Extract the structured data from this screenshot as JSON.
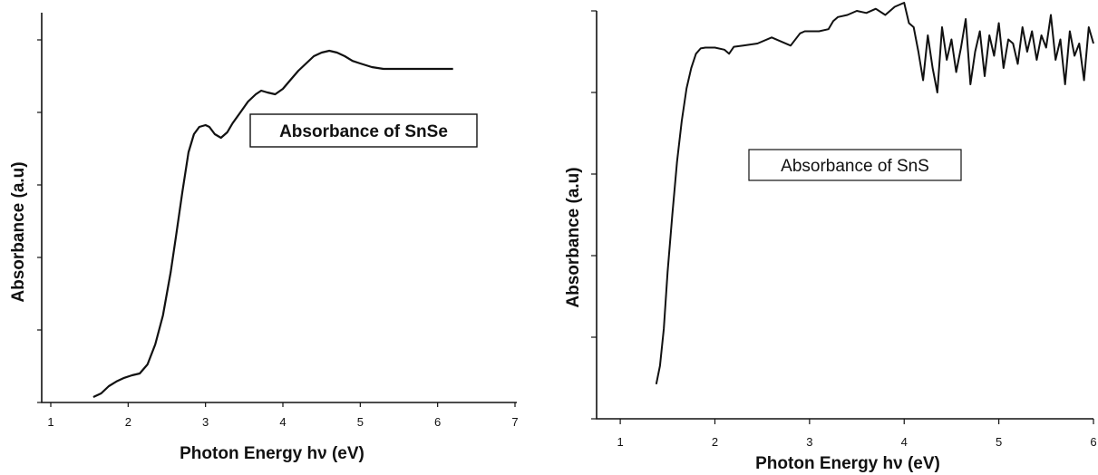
{
  "chart_data": [
    {
      "type": "line",
      "title": "",
      "xlabel": "Photon Energy hν (eV)",
      "ylabel": "Absorbance (a.u)",
      "xlim": [
        1,
        7
      ],
      "ylim": [
        0,
        10
      ],
      "x_ticks": [
        "1",
        "2",
        "3",
        "4",
        "5",
        "6",
        "7"
      ],
      "y_tick_values": [
        0,
        2,
        4,
        6,
        8,
        10
      ],
      "y_tick_labels_shown": false,
      "grid": false,
      "annotation": "Absorbance of SnSe",
      "annotation_style": "bold, boxed",
      "series": [
        {
          "x": [
            1.55,
            1.65,
            1.75,
            1.85,
            1.95,
            2.05,
            2.15,
            2.25,
            2.35,
            2.45,
            2.55,
            2.62,
            2.7,
            2.78,
            2.85,
            2.92,
            3.0,
            3.05,
            3.12,
            3.2,
            3.28,
            3.35,
            3.45,
            3.55,
            3.65,
            3.72,
            3.8,
            3.9,
            4.0,
            4.1,
            4.2,
            4.3,
            4.4,
            4.5,
            4.6,
            4.7,
            4.8,
            4.9,
            5.0,
            5.15,
            5.3,
            5.5,
            5.7,
            5.9,
            6.1,
            6.2
          ],
          "y": [
            0.15,
            0.25,
            0.45,
            0.58,
            0.68,
            0.75,
            0.8,
            1.05,
            1.6,
            2.4,
            3.6,
            4.6,
            5.8,
            6.9,
            7.4,
            7.6,
            7.65,
            7.6,
            7.4,
            7.3,
            7.45,
            7.7,
            8.0,
            8.3,
            8.5,
            8.6,
            8.55,
            8.5,
            8.65,
            8.9,
            9.15,
            9.35,
            9.55,
            9.65,
            9.7,
            9.65,
            9.55,
            9.42,
            9.35,
            9.25,
            9.2,
            9.2,
            9.2,
            9.2,
            9.2,
            9.2
          ]
        }
      ]
    },
    {
      "type": "line",
      "title": "",
      "xlabel": "Photon Energy hν (eV)",
      "ylabel": "Absorbance (a.u)",
      "xlim": [
        0.75,
        6
      ],
      "ylim": [
        0,
        10
      ],
      "x_ticks": [
        "1",
        "2",
        "3",
        "4",
        "5",
        "6"
      ],
      "y_tick_values": [
        0,
        2,
        4,
        6,
        8,
        10
      ],
      "y_tick_labels_shown": false,
      "grid": false,
      "annotation": "Absorbance of SnS",
      "annotation_style": "regular, boxed",
      "series": [
        {
          "x": [
            1.38,
            1.42,
            1.46,
            1.5,
            1.55,
            1.6,
            1.65,
            1.7,
            1.75,
            1.8,
            1.85,
            1.9,
            2.0,
            2.1,
            2.15,
            2.2,
            2.3,
            2.45,
            2.6,
            2.7,
            2.8,
            2.9,
            2.95,
            3.0,
            3.1,
            3.2,
            3.25,
            3.3,
            3.4,
            3.5,
            3.6,
            3.7,
            3.8,
            3.9,
            4.0,
            4.05,
            4.1,
            4.15,
            4.2,
            4.25,
            4.3,
            4.35,
            4.4,
            4.45,
            4.5,
            4.55,
            4.6,
            4.65,
            4.7,
            4.75,
            4.8,
            4.85,
            4.9,
            4.95,
            5.0,
            5.05,
            5.1,
            5.15,
            5.2,
            5.25,
            5.3,
            5.35,
            5.4,
            5.45,
            5.5,
            5.55,
            5.6,
            5.65,
            5.7,
            5.75,
            5.8,
            5.85,
            5.9,
            5.95,
            6.0
          ],
          "y": [
            0.85,
            1.3,
            2.2,
            3.6,
            5.0,
            6.3,
            7.3,
            8.1,
            8.6,
            8.95,
            9.08,
            9.1,
            9.1,
            9.05,
            8.95,
            9.12,
            9.15,
            9.2,
            9.35,
            9.25,
            9.15,
            9.45,
            9.5,
            9.5,
            9.5,
            9.55,
            9.75,
            9.85,
            9.9,
            10.0,
            9.95,
            10.05,
            9.9,
            10.1,
            10.2,
            9.7,
            9.6,
            9.0,
            8.3,
            9.4,
            8.6,
            8.0,
            9.6,
            8.8,
            9.3,
            8.5,
            9.1,
            9.8,
            8.2,
            9.0,
            9.5,
            8.4,
            9.4,
            8.9,
            9.7,
            8.6,
            9.3,
            9.2,
            8.7,
            9.6,
            9.0,
            9.5,
            8.8,
            9.4,
            9.1,
            9.9,
            8.8,
            9.3,
            8.2,
            9.5,
            8.9,
            9.2,
            8.3,
            9.6,
            9.2
          ]
        }
      ]
    }
  ]
}
